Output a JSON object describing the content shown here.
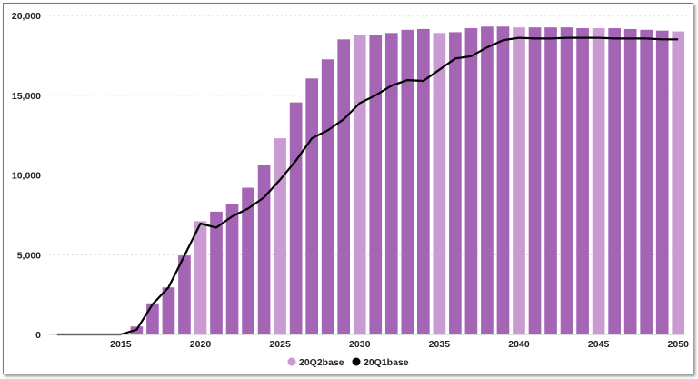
{
  "chart_data": {
    "type": "bar",
    "title": "",
    "xlabel": "",
    "ylabel": "",
    "ylim": [
      0,
      20000
    ],
    "yticks": [
      0,
      5000,
      10000,
      15000,
      20000
    ],
    "ytick_labels": [
      "0",
      "5,000",
      "10,000",
      "15,000",
      "20,000"
    ],
    "xticks": [
      2015,
      2020,
      2025,
      2030,
      2035,
      2040,
      2045,
      2050
    ],
    "xtick_labels": [
      "2015",
      "2020",
      "2025",
      "2030",
      "2035",
      "2040",
      "2045",
      "2050"
    ],
    "grid": "horizontal dotted",
    "legend_position": "bottom",
    "categories": [
      2011,
      2012,
      2013,
      2014,
      2015,
      2016,
      2017,
      2018,
      2019,
      2020,
      2021,
      2022,
      2023,
      2024,
      2025,
      2026,
      2027,
      2028,
      2029,
      2030,
      2031,
      2032,
      2033,
      2034,
      2035,
      2036,
      2037,
      2038,
      2039,
      2040,
      2041,
      2042,
      2043,
      2044,
      2045,
      2046,
      2047,
      2048,
      2049,
      2050
    ],
    "series": [
      {
        "name": "20Q2base",
        "type": "bar",
        "color": "#a565b5",
        "light_color": "#c99bd2",
        "light_years": [
          2020,
          2025,
          2030,
          2035,
          2040,
          2045,
          2050
        ],
        "values": [
          0,
          0,
          0,
          0,
          0,
          500,
          1950,
          2950,
          4950,
          7100,
          7700,
          8150,
          9200,
          10650,
          12300,
          14550,
          16050,
          17250,
          18500,
          18750,
          18750,
          18900,
          19100,
          19150,
          18900,
          18950,
          19200,
          19300,
          19300,
          19250,
          19250,
          19250,
          19250,
          19200,
          19200,
          19200,
          19150,
          19100,
          19050,
          19000
        ]
      },
      {
        "name": "20Q1base",
        "type": "line",
        "color": "#000000",
        "values": [
          0,
          0,
          0,
          0,
          0,
          300,
          1900,
          2950,
          4950,
          6950,
          6700,
          7400,
          7900,
          8600,
          9700,
          10900,
          12300,
          12800,
          13500,
          14500,
          15000,
          15600,
          15950,
          15900,
          16600,
          17300,
          17450,
          18000,
          18450,
          18600,
          18550,
          18550,
          18600,
          18600,
          18600,
          18550,
          18550,
          18550,
          18500,
          18500
        ]
      }
    ]
  }
}
